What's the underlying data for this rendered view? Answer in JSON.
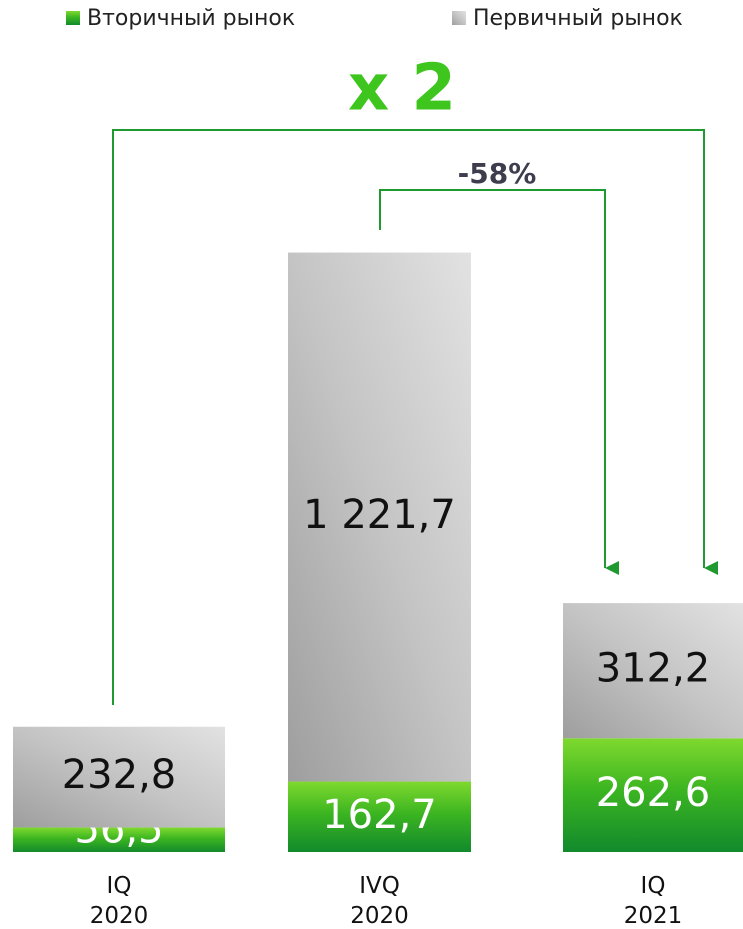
{
  "chart_data": {
    "type": "stacked_bar",
    "categories": [
      "IQ\n2020",
      "IVQ\n2020",
      "IQ\n2021"
    ],
    "series": [
      {
        "name": "Вторичный рынок",
        "color": "#3cb521",
        "values": [
          56.5,
          162.7,
          262.6
        ],
        "value_labels": [
          "56,5",
          "162,7",
          "262,6"
        ]
      },
      {
        "name": "Первичный рынок",
        "color": "#c4c4c4",
        "values": [
          232.8,
          1221.7,
          312.2
        ],
        "value_labels": [
          "232,8",
          "1 221,7",
          "312,2"
        ]
      }
    ],
    "annotations": [
      "x 2",
      "-58%"
    ]
  }
}
